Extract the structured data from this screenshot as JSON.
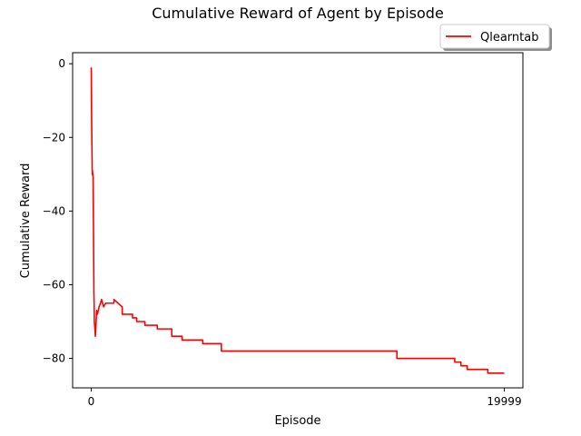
{
  "chart_data": {
    "type": "line",
    "title": "Cumulative Reward of Agent by Episode",
    "xlabel": "Episode",
    "ylabel": "Cumulative Reward",
    "xlim": [
      -900,
      20900
    ],
    "ylim": [
      -88,
      3
    ],
    "x_ticks": [
      0,
      19999
    ],
    "x_tick_labels": [
      "0",
      "19999"
    ],
    "y_ticks": [
      0,
      -20,
      -40,
      -60,
      -80
    ],
    "y_tick_labels": [
      "0",
      "−20",
      "−40",
      "−60",
      "−80"
    ],
    "grid": false,
    "legend_position": "top-right, above plot",
    "series": [
      {
        "name": "Qlearntab",
        "color": "#ff0000",
        "x": [
          0,
          20,
          50,
          60,
          90,
          110,
          130,
          140,
          150,
          180,
          200,
          220,
          260,
          300,
          380,
          450,
          500,
          600,
          700,
          900,
          1100,
          1100,
          1500,
          1500,
          1700,
          1700,
          2000,
          2000,
          2200,
          2200,
          2600,
          2600,
          3200,
          3200,
          3500,
          3500,
          3900,
          3900,
          4400,
          4400,
          5400,
          5400,
          5600,
          5600,
          6300,
          6300,
          14800,
          14800,
          17600,
          17600,
          17900,
          17900,
          18200,
          18200,
          19200,
          19200,
          19999
        ],
        "y": [
          -1,
          -15,
          -30,
          -29,
          -31,
          -45,
          -62,
          -65,
          -70,
          -72,
          -74,
          -72,
          -67,
          -68,
          -66,
          -65,
          -64,
          -66,
          -65,
          -65,
          -65,
          -64,
          -66,
          -68,
          -68,
          -68,
          -68,
          -69,
          -69,
          -70,
          -70,
          -71,
          -71,
          -72,
          -72,
          -72,
          -72,
          -74,
          -74,
          -75,
          -75,
          -76,
          -76,
          -76,
          -76,
          -78,
          -78,
          -80,
          -80,
          -81,
          -81,
          -82,
          -82,
          -83,
          -83,
          -84,
          -84
        ]
      }
    ]
  }
}
